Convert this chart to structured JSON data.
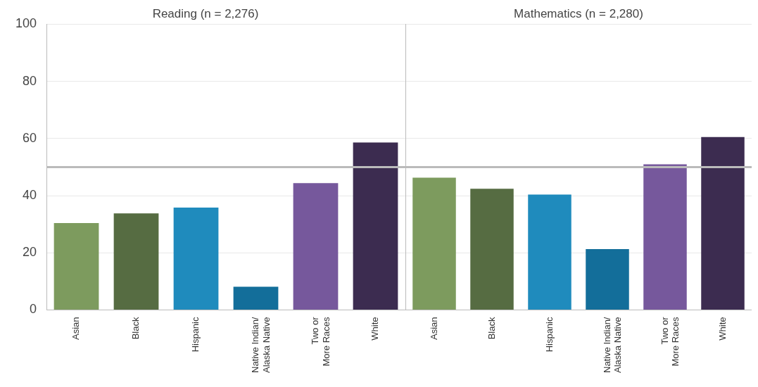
{
  "chart_data": [
    {
      "type": "bar",
      "title": "Reading (n = 2,276)",
      "categories": [
        "Asian",
        "Black",
        "Hispanic",
        "Native Indian/ Alaska Native",
        "Two or More Races",
        "White"
      ],
      "values": [
        30.4,
        33.8,
        35.8,
        8.1,
        44.4,
        58.6
      ],
      "colors": [
        "#7d9b5e",
        "#566c42",
        "#1f8bbd",
        "#136e9a",
        "#76589c",
        "#3c2c50"
      ],
      "ylim": [
        0,
        100
      ],
      "yticks": [
        0,
        20,
        40,
        60,
        80,
        100
      ],
      "grid": "y",
      "ref_lines": [
        {
          "axis": "y",
          "value": 50,
          "color": "#bbbbbb"
        }
      ]
    },
    {
      "type": "bar",
      "title": "Mathematics (n = 2,280)",
      "categories": [
        "Asian",
        "Black",
        "Hispanic",
        "Native Indian/ Alaska Native",
        "Two or More Races",
        "White"
      ],
      "values": [
        46.3,
        42.4,
        40.4,
        21.3,
        51,
        60.5
      ],
      "colors": [
        "#7d9b5e",
        "#566c42",
        "#1f8bbd",
        "#136e9a",
        "#76589c",
        "#3c2c50"
      ],
      "ylim": [
        0,
        100
      ],
      "yticks": [
        0,
        20,
        40,
        60,
        80,
        100
      ],
      "grid": "y",
      "tick_labels": "x",
      "ref_lines": [
        {
          "axis": "y",
          "value": 50,
          "color": "#bbbbbb"
        }
      ]
    }
  ]
}
